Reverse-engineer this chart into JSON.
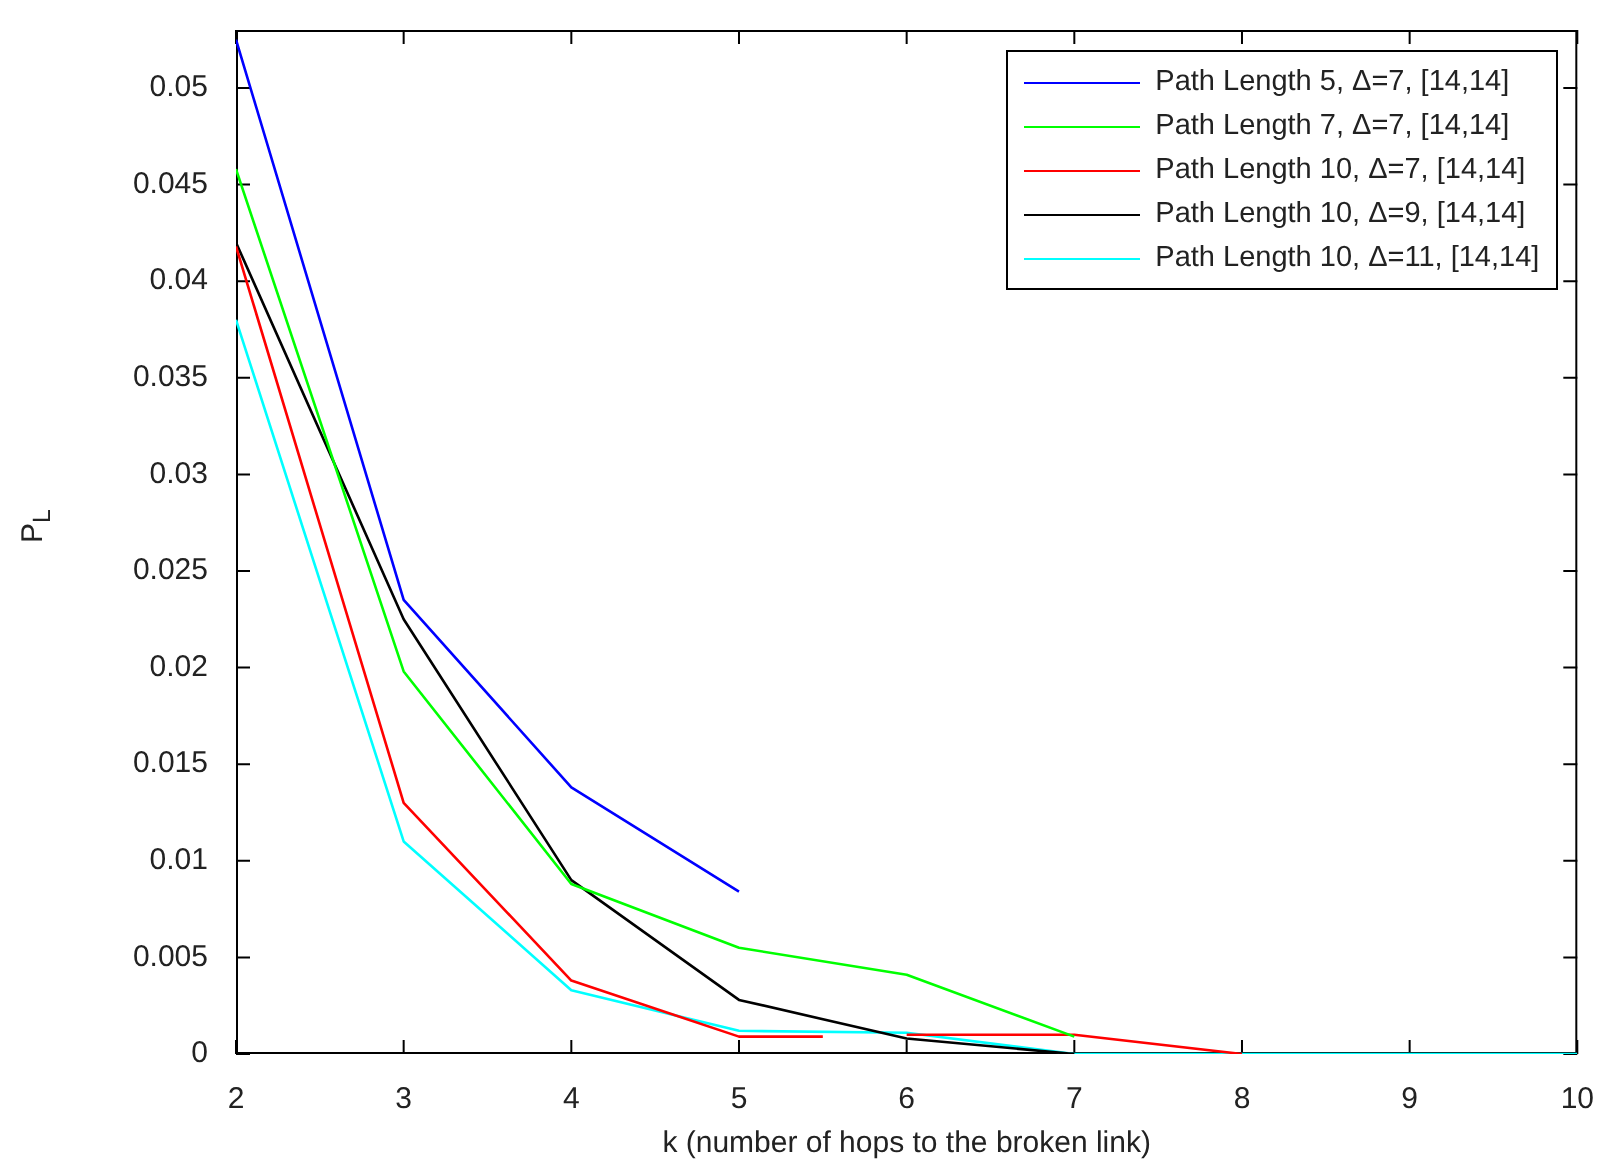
{
  "chart_data": {
    "type": "line",
    "xlabel": "k (number of hops to the broken link)",
    "ylabel": "P$_{L}$",
    "xlim": [
      2,
      10
    ],
    "xticks": [
      2,
      3,
      4,
      5,
      6,
      7,
      8,
      9,
      10
    ],
    "ylim": [
      0,
      0.053
    ],
    "yticks": [
      0,
      0.005,
      0.01,
      0.015,
      0.02,
      0.025,
      0.03,
      0.035,
      0.04,
      0.045,
      0.05
    ],
    "legend": "top right",
    "grid": false,
    "marker": "none",
    "line_style": "solid",
    "series": [
      {
        "name": "Path Length 5, Δ=7, [14,14]",
        "color": "#0000ff",
        "x": [
          2,
          3,
          4,
          5
        ],
        "values": [
          0.0525,
          0.0235,
          0.0138,
          0.0084
        ]
      },
      {
        "name": "Path Length 7, Δ=7, [14,14]",
        "color": "#00ff00",
        "x": [
          2,
          3,
          4,
          5,
          6,
          7
        ],
        "values": [
          0.0458,
          0.0198,
          0.0088,
          0.0055,
          0.0041,
          0.0009
        ]
      },
      {
        "name": "Path Length 10, Δ=7, [14,14]",
        "color": "#ff0000",
        "x": [
          2,
          3,
          4,
          5,
          5.5,
          5.75,
          6,
          7,
          8
        ],
        "values": [
          0.0418,
          0.013,
          0.0038,
          0.0009,
          0.0009,
          null,
          0.001,
          0.001,
          0
        ]
      },
      {
        "name": "Path Length 10, Δ=9, [14,14]",
        "color": "#000000",
        "x": [
          2,
          3,
          4,
          5,
          6,
          7
        ],
        "values": [
          0.042,
          0.0225,
          0.009,
          0.0028,
          0.0008,
          0
        ]
      },
      {
        "name": "Path Length 10, Δ=11, [14,14]",
        "color": "#00ffff",
        "x": [
          2,
          3,
          4,
          5,
          6,
          7,
          8,
          9,
          10
        ],
        "values": [
          0.038,
          0.011,
          0.0033,
          0.0012,
          0.0011,
          0,
          0,
          0,
          0
        ]
      }
    ]
  }
}
